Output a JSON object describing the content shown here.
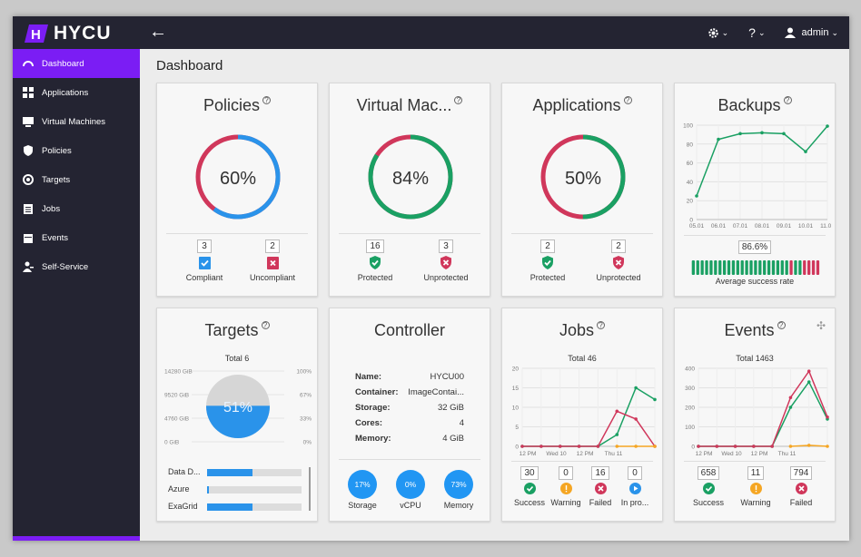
{
  "app": {
    "brand": "HYCU",
    "user": "admin"
  },
  "sidebar": {
    "items": [
      {
        "label": "Dashboard",
        "icon": "dashboard-icon"
      },
      {
        "label": "Applications",
        "icon": "grid-icon"
      },
      {
        "label": "Virtual Machines",
        "icon": "monitor-icon"
      },
      {
        "label": "Policies",
        "icon": "shield-icon"
      },
      {
        "label": "Targets",
        "icon": "target-icon"
      },
      {
        "label": "Jobs",
        "icon": "clipboard-icon"
      },
      {
        "label": "Events",
        "icon": "calendar-icon"
      },
      {
        "label": "Self-Service",
        "icon": "person-key-icon"
      }
    ]
  },
  "page": {
    "title": "Dashboard"
  },
  "colors": {
    "green": "#1aa063",
    "red": "#d0375b",
    "blue": "#2a93ea",
    "orange": "#f5a623",
    "purple": "#7b1df4",
    "dark": "#242432"
  },
  "policies": {
    "title": "Policies",
    "percent": "60%",
    "value": 0.6,
    "compliant": {
      "count": "3",
      "label": "Compliant"
    },
    "uncompliant": {
      "count": "2",
      "label": "Uncompliant"
    }
  },
  "vms": {
    "title": "Virtual Mac...",
    "percent": "84%",
    "value": 0.84,
    "protected": {
      "count": "16",
      "label": "Protected"
    },
    "unprotected": {
      "count": "3",
      "label": "Unprotected"
    }
  },
  "applications": {
    "title": "Applications",
    "percent": "50%",
    "value": 0.5,
    "protected": {
      "count": "2",
      "label": "Protected"
    },
    "unprotected": {
      "count": "2",
      "label": "Unprotected"
    }
  },
  "backups": {
    "title": "Backups",
    "rate": "86.6%",
    "rate_label": "Average success rate",
    "bars": [
      "g",
      "g",
      "g",
      "g",
      "g",
      "g",
      "g",
      "g",
      "g",
      "g",
      "g",
      "g",
      "g",
      "g",
      "g",
      "g",
      "g",
      "g",
      "g",
      "g",
      "g",
      "g",
      "r",
      "g",
      "g",
      "r",
      "r",
      "r",
      "r"
    ]
  },
  "targets": {
    "title": "Targets",
    "total": "Total 6",
    "percent": "51%",
    "fill": 0.51,
    "left_ticks": [
      "14280 GiB",
      "9520 GiB",
      "4760 GiB",
      "0 GiB"
    ],
    "right_ticks": [
      "100%",
      "67%",
      "33%",
      "0%"
    ],
    "rows": [
      {
        "label": "Data D...",
        "fill": 0.48
      },
      {
        "label": "Azure",
        "fill": 0.02
      },
      {
        "label": "ExaGrid",
        "fill": 0.48
      }
    ]
  },
  "controller": {
    "title": "Controller",
    "rows": [
      {
        "k": "Name:",
        "v": "HYCU00"
      },
      {
        "k": "Container:",
        "v": "ImageContai..."
      },
      {
        "k": "Storage:",
        "v": "32 GiB"
      },
      {
        "k": "Cores:",
        "v": "4"
      },
      {
        "k": "Memory:",
        "v": "4 GiB"
      }
    ],
    "bubbles": [
      {
        "value": "17%",
        "label": "Storage"
      },
      {
        "value": "0%",
        "label": "vCPU"
      },
      {
        "value": "73%",
        "label": "Memory"
      }
    ]
  },
  "jobs": {
    "title": "Jobs",
    "total": "Total 46",
    "stats": [
      {
        "count": "30",
        "label": "Success"
      },
      {
        "count": "0",
        "label": "Warning"
      },
      {
        "count": "16",
        "label": "Failed"
      },
      {
        "count": "0",
        "label": "In pro..."
      }
    ]
  },
  "events": {
    "title": "Events",
    "total": "Total 1463",
    "stats": [
      {
        "count": "658",
        "label": "Success"
      },
      {
        "count": "11",
        "label": "Warning"
      },
      {
        "count": "794",
        "label": "Failed"
      }
    ]
  },
  "chart_data": [
    {
      "type": "line",
      "title": "Backups",
      "categories": [
        "05.01",
        "06.01",
        "07.01",
        "08.01",
        "09.01",
        "10.01",
        "11.01"
      ],
      "series": [
        {
          "values": [
            25,
            85,
            91,
            92,
            91,
            72,
            99
          ]
        }
      ],
      "ylim": [
        0,
        100
      ],
      "yticks": [
        0,
        20,
        40,
        60,
        80,
        100
      ],
      "grid": true
    },
    {
      "type": "line",
      "title": "Jobs",
      "tick_labels": [
        "12 PM",
        "Wed 10",
        "12 PM",
        "Thu 11"
      ],
      "ylim": [
        0,
        20
      ],
      "yticks": [
        0,
        5,
        10,
        15,
        20
      ],
      "grid": true,
      "series": [
        {
          "color": "green",
          "values": [
            0,
            0,
            0,
            0,
            0,
            3,
            15,
            12
          ]
        },
        {
          "color": "red",
          "values": [
            0,
            0,
            0,
            0,
            0,
            9,
            7,
            0
          ]
        },
        {
          "color": "orange",
          "values": [
            null,
            null,
            null,
            null,
            null,
            0,
            0,
            0
          ]
        }
      ]
    },
    {
      "type": "line",
      "title": "Events",
      "tick_labels": [
        "12 PM",
        "Wed 10",
        "12 PM",
        "Thu 11"
      ],
      "ylim": [
        0,
        400
      ],
      "yticks": [
        0,
        100,
        200,
        300,
        400
      ],
      "grid": true,
      "series": [
        {
          "color": "green",
          "values": [
            0,
            0,
            0,
            0,
            0,
            200,
            330,
            140
          ]
        },
        {
          "color": "red",
          "values": [
            0,
            0,
            0,
            0,
            0,
            250,
            385,
            150
          ]
        },
        {
          "color": "orange",
          "values": [
            null,
            null,
            null,
            null,
            null,
            0,
            5,
            0
          ]
        }
      ]
    }
  ]
}
